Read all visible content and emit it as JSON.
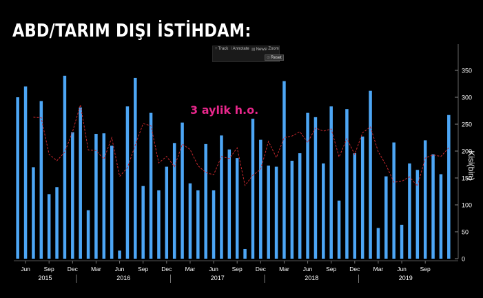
{
  "title": "ABD/TARIM DIŞI İSTİHDAM:",
  "toolbar": {
    "track": "Track",
    "annotate": "Annotate",
    "news": "News",
    "zoom": "Zoom",
    "reset": "Reset"
  },
  "chart_data": {
    "type": "bar",
    "ylabel": "Kisi(bin)",
    "ylim": [
      0,
      375
    ],
    "yticks": [
      0,
      50,
      100,
      150,
      200,
      250,
      300,
      350
    ],
    "annotation": "3 aylik h.o.",
    "colors": {
      "bar": "#4da6f5",
      "line": "#c8282d",
      "background": "#000000"
    },
    "month_labels": [
      "Jun",
      "Sep",
      "Dec",
      "Mar",
      "Jun",
      "Sep",
      "Dec",
      "Mar",
      "Jun",
      "Sep",
      "Dec",
      "Mar",
      "Jun",
      "Sep",
      "Dec",
      "Mar",
      "Jun",
      "Sep"
    ],
    "year_labels": [
      "2015",
      "2016",
      "2017",
      "2018",
      "2019"
    ],
    "series": [
      {
        "type": "bar",
        "values": [
          300,
          320,
          170,
          293,
          120,
          133,
          340,
          235,
          281,
          90,
          232,
          233,
          210,
          15,
          283,
          336,
          135,
          271,
          127,
          171,
          215,
          253,
          140,
          127,
          213,
          127,
          229,
          203,
          187,
          18,
          260,
          221,
          173,
          171,
          330,
          182,
          196,
          271,
          263,
          177,
          283,
          108,
          278,
          196,
          227,
          312,
          57,
          153,
          216,
          63,
          177,
          165,
          220,
          194,
          157,
          267
        ]
      },
      {
        "type": "line",
        "style": "dashed",
        "values": [
          null,
          null,
          263,
          262,
          194,
          182,
          198,
          236,
          286,
          202,
          201,
          185,
          225,
          153,
          169,
          211,
          251,
          247,
          178,
          190,
          171,
          213,
          203,
          173,
          160,
          156,
          190,
          186,
          206,
          136,
          155,
          166,
          218,
          188,
          225,
          228,
          236,
          216,
          243,
          237,
          241,
          189,
          223,
          194,
          234,
          245,
          199,
          174,
          142,
          144,
          152,
          135,
          187,
          193,
          190,
          206
        ]
      }
    ]
  }
}
